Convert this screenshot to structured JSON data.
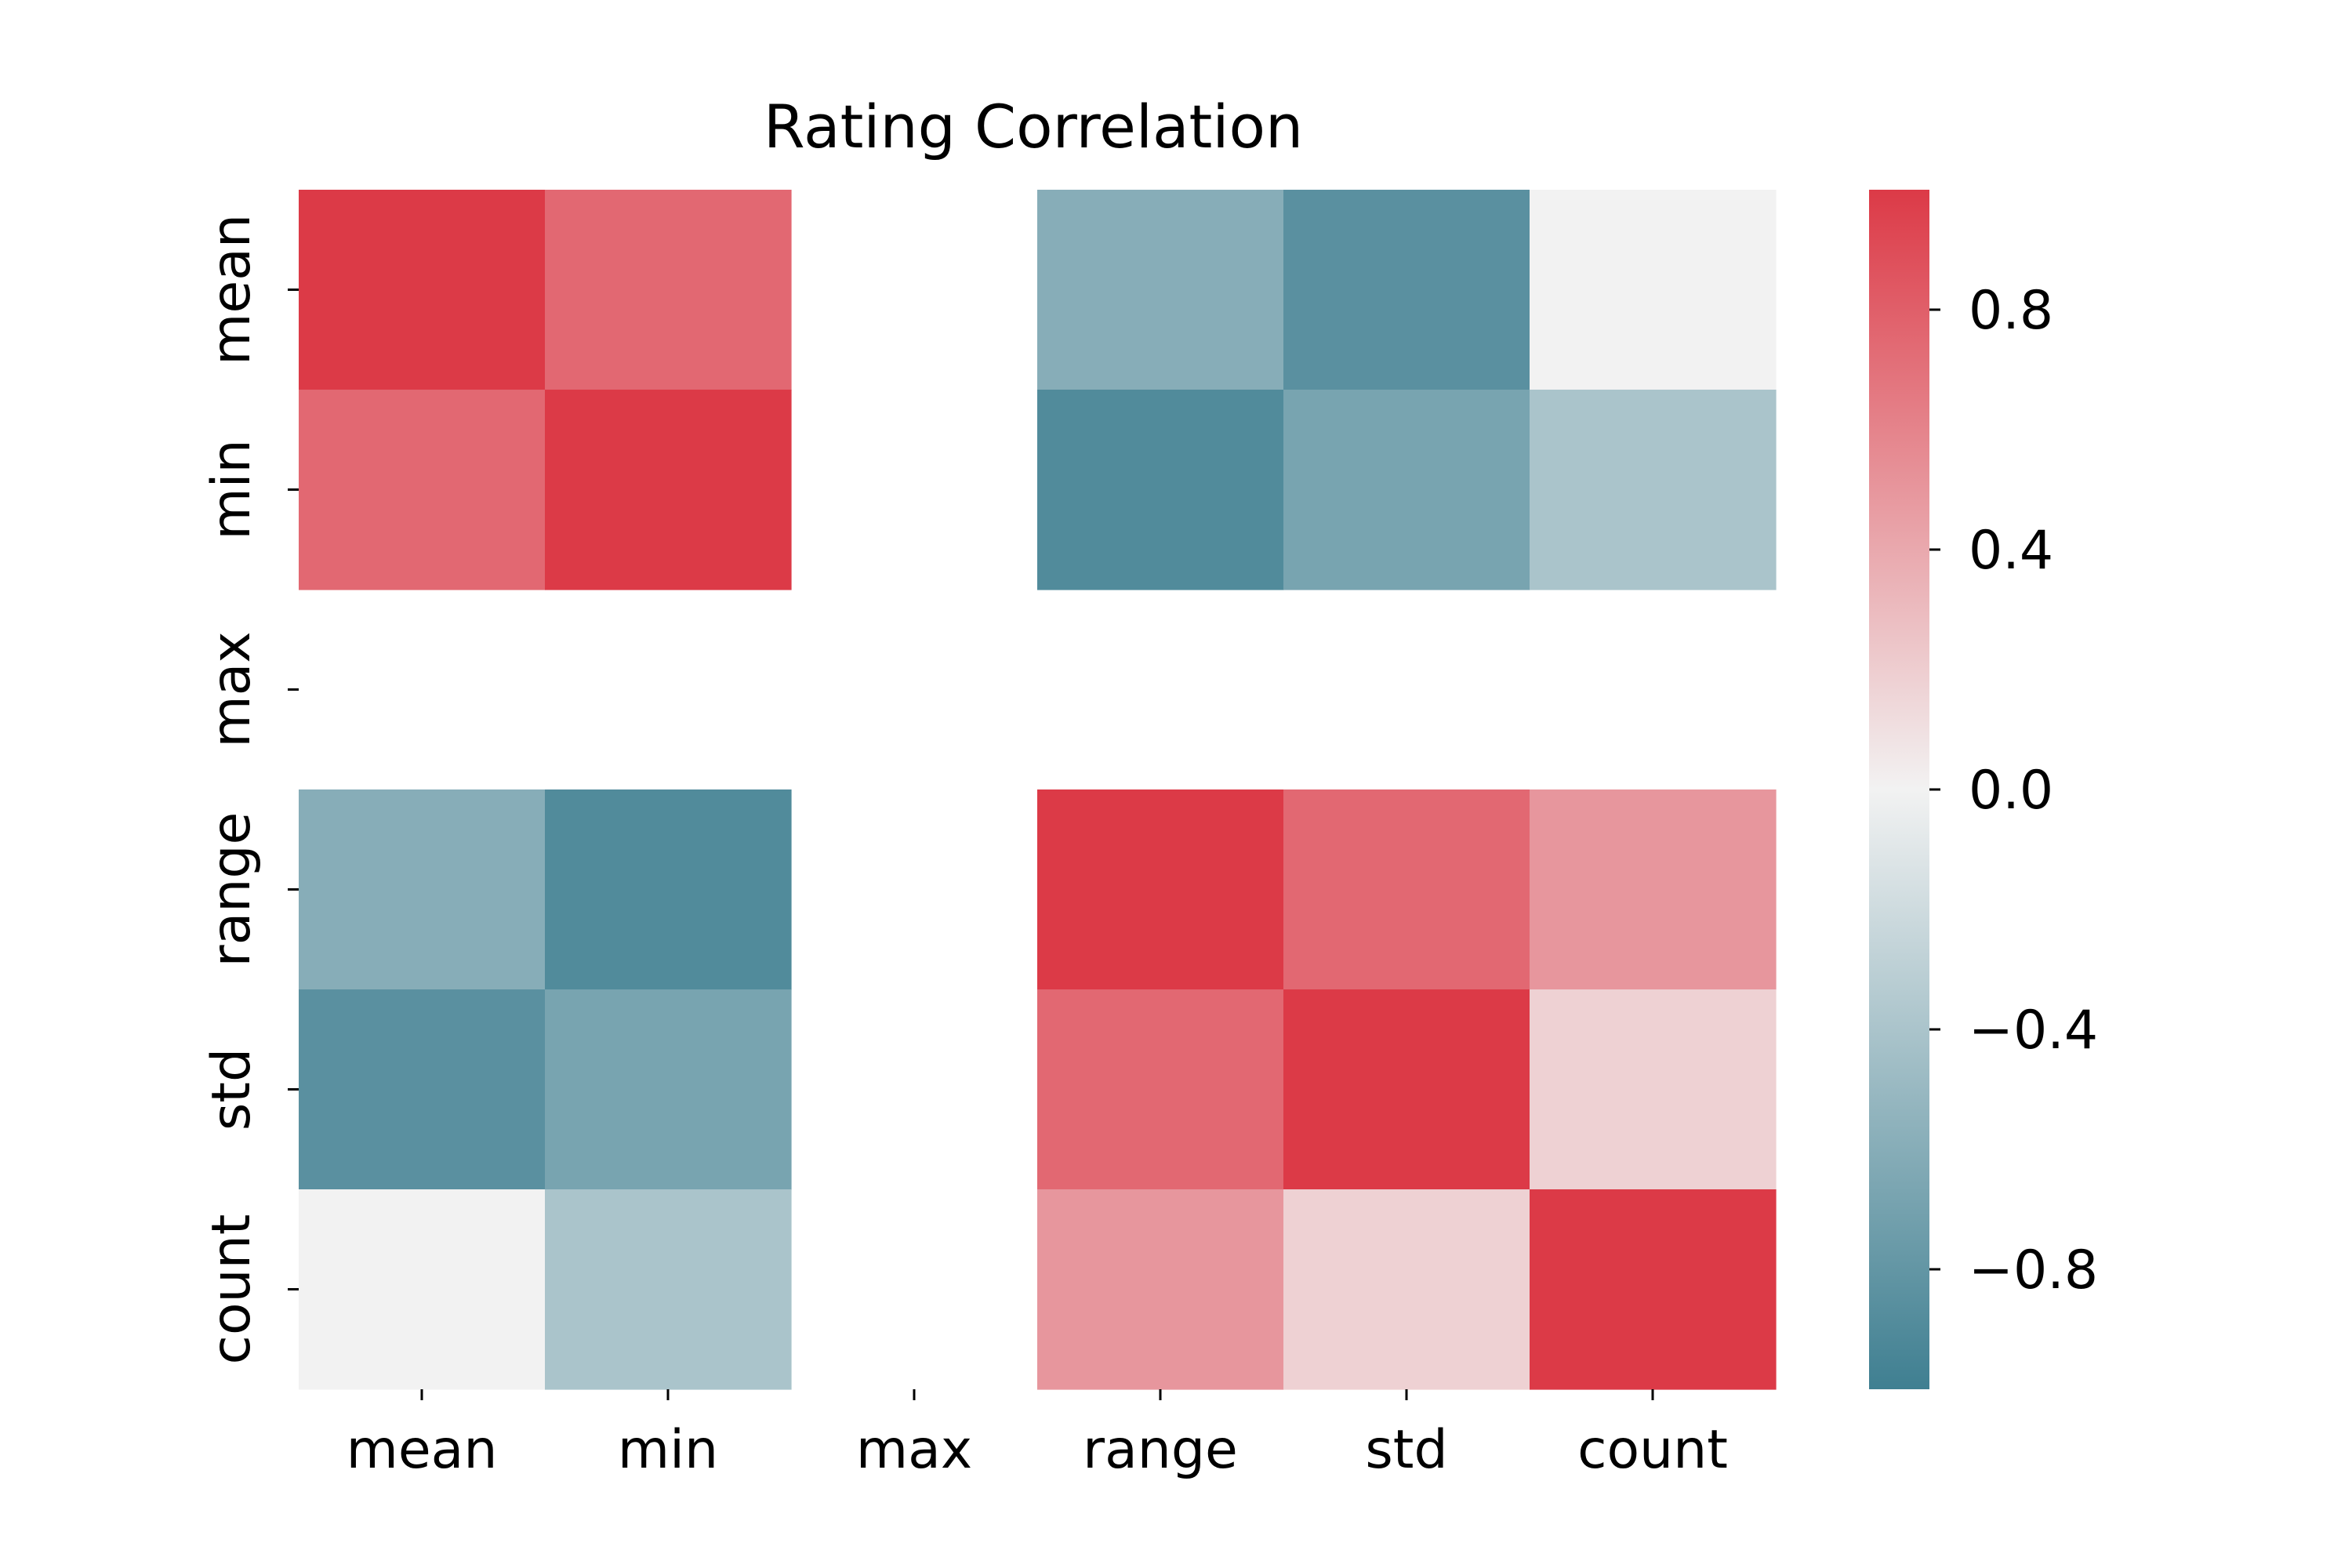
{
  "chart_data": {
    "type": "heatmap",
    "title": "Rating Correlation",
    "xlabel": "",
    "ylabel": "",
    "x_categories": [
      "mean",
      "min",
      "max",
      "range",
      "std",
      "count"
    ],
    "y_categories": [
      "mean",
      "min",
      "max",
      "range",
      "std",
      "count"
    ],
    "values": [
      [
        1.0,
        0.75,
        null,
        -0.6,
        -0.85,
        0.0
      ],
      [
        0.75,
        1.0,
        null,
        -0.9,
        -0.68,
        -0.4
      ],
      [
        null,
        null,
        null,
        null,
        null,
        null
      ],
      [
        -0.6,
        -0.9,
        null,
        1.0,
        0.75,
        0.5
      ],
      [
        -0.85,
        -0.68,
        null,
        0.75,
        1.0,
        0.18
      ],
      [
        0.0,
        -0.4,
        null,
        0.5,
        0.18,
        1.0
      ]
    ],
    "colorbar": {
      "range": [
        -1.0,
        1.0
      ],
      "ticks": [
        0.8,
        0.4,
        0.0,
        -0.4,
        -0.8
      ],
      "tick_labels": [
        "0.8",
        "0.4",
        "0.0",
        "−0.4",
        "−0.8"
      ],
      "colors": {
        "negative": "#3f7f91",
        "neutral": "#f2f2f2",
        "positive": "#dc3a47"
      }
    },
    "grid": false,
    "legend": "colorbar-right"
  }
}
